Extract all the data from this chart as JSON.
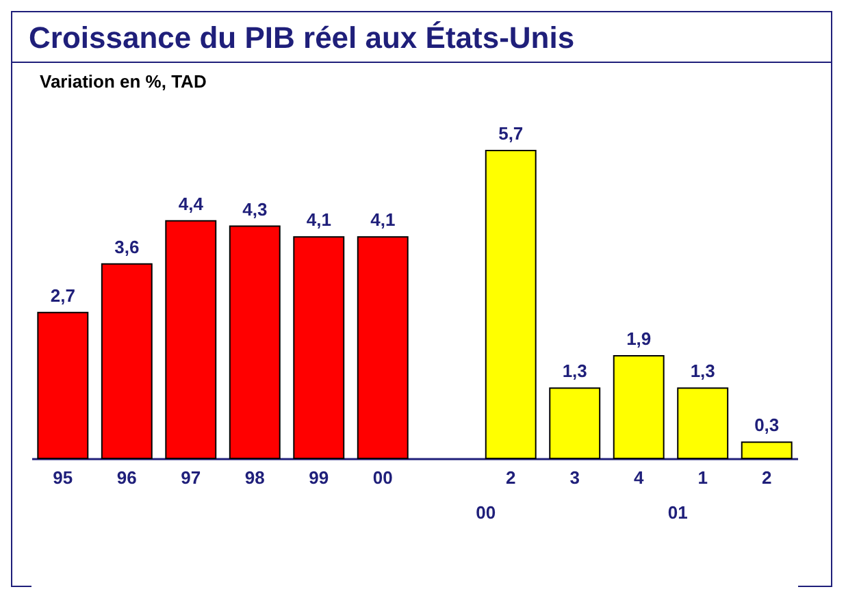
{
  "chart_data": {
    "type": "bar",
    "title": "Croissance du PIB réel aux États-Unis",
    "subtitle": "Variation en %, TAD",
    "categories": [
      "95",
      "96",
      "97",
      "98",
      "99",
      "00",
      null,
      "2",
      "3",
      "4",
      "1",
      "2"
    ],
    "values": [
      2.7,
      3.6,
      4.4,
      4.3,
      4.1,
      4.1,
      null,
      5.7,
      1.3,
      1.9,
      1.3,
      0.3
    ],
    "colors": [
      "#ff0000",
      "#ff0000",
      "#ff0000",
      "#ff0000",
      "#ff0000",
      "#ff0000",
      null,
      "#ffff00",
      "#ffff00",
      "#ffff00",
      "#ffff00",
      "#ffff00"
    ],
    "value_labels": [
      "2,7",
      "3,6",
      "4,4",
      "4,3",
      "4,1",
      "4,1",
      null,
      "5,7",
      "1,3",
      "1,9",
      "1,3",
      "0,3"
    ],
    "annotations": [
      "00",
      "01"
    ]
  }
}
